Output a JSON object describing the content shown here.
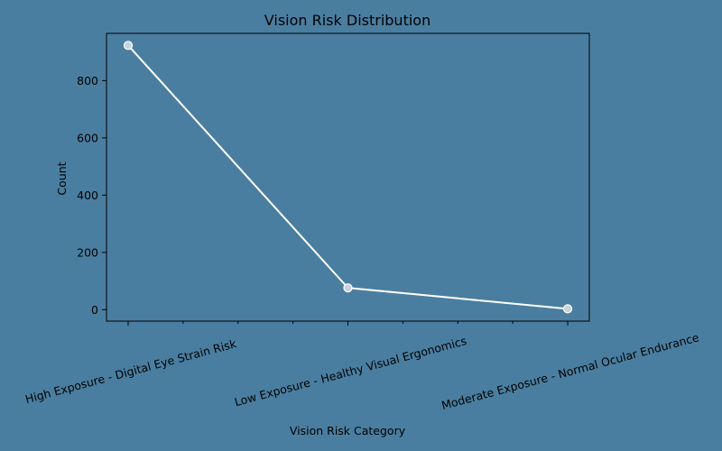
{
  "chart_data": {
    "type": "line",
    "title": "Vision Risk Distribution",
    "xlabel": "Vision Risk Category",
    "ylabel": "Count",
    "categories": [
      "High Exposure - Digital Eye Strain Risk",
      "Low Exposure - Healthy Visual Ergonomics",
      "Moderate Exposure - Normal Ocular Endurance"
    ],
    "values": [
      923,
      76,
      3
    ],
    "ylim": [
      -40,
      965
    ],
    "yticks": [
      0,
      200,
      400,
      600,
      800
    ],
    "grid": false,
    "line_color": "#ffffff",
    "background_color": "#4a7ea0"
  }
}
